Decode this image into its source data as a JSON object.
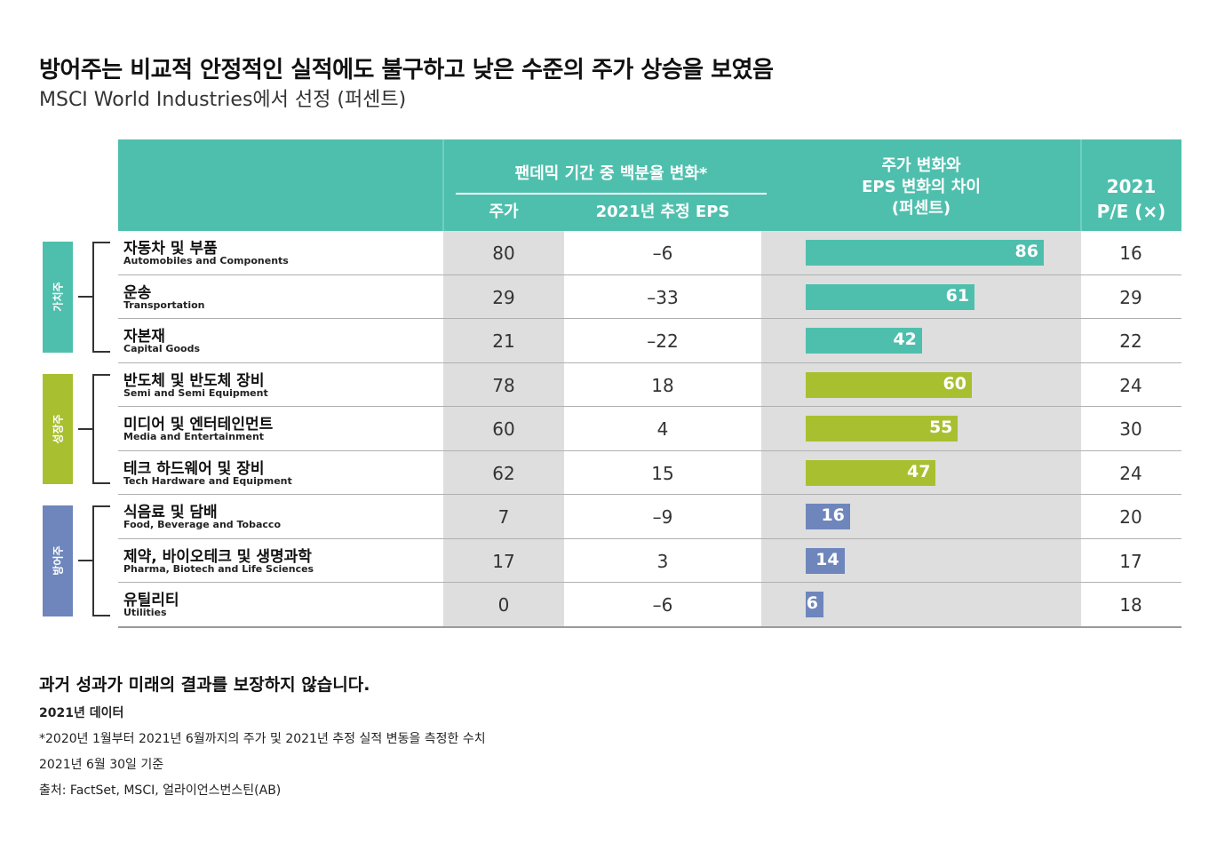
{
  "title": "방어주는 비교적 안정적인 실적에도 불구하고 낮은 수준의 주가 상승을 보였음",
  "subtitle": "MSCI World Industries에서 선정 (퍼센트)",
  "headers": {
    "pandemic": "팬데믹 기간 중 백분율 변화*",
    "price": "주가",
    "eps": "2021년 추정 EPS",
    "diff_line1": "주가 변화와",
    "diff_line2": "EPS 변화의 차이",
    "diff_line3": "(퍼센트)",
    "pe_line1": "2021",
    "pe_line2": "P/E (×)"
  },
  "groups": [
    {
      "label": "가치주",
      "color": "#4fbfad"
    },
    {
      "label": "성장주",
      "color": "#a8c030"
    },
    {
      "label": "방어주",
      "color": "#6e86bc"
    }
  ],
  "colors": {
    "header": "#4fbfad",
    "value": "#4fbfad",
    "growth": "#a8c030",
    "defensive": "#6e86bc"
  },
  "chart_data": {
    "type": "table",
    "columns": [
      "주가",
      "2021년 추정 EPS",
      "주가 변화와 EPS 변화의 차이 (퍼센트)",
      "2021 P/E (×)"
    ],
    "rows": [
      {
        "name_ko": "자동차 및 부품",
        "name_en": "Automobiles and Components",
        "group": 0,
        "price": "80",
        "eps": "–6",
        "diff": 86,
        "pe": "16"
      },
      {
        "name_ko": "운송",
        "name_en": "Transportation",
        "group": 0,
        "price": "29",
        "eps": "–33",
        "diff": 61,
        "pe": "29"
      },
      {
        "name_ko": "자본재",
        "name_en": "Capital Goods",
        "group": 0,
        "price": "21",
        "eps": "–22",
        "diff": 42,
        "pe": "22"
      },
      {
        "name_ko": "반도체 및 반도체 장비",
        "name_en": "Semi and Semi Equipment",
        "group": 1,
        "price": "78",
        "eps": "18",
        "diff": 60,
        "pe": "24"
      },
      {
        "name_ko": "미디어 및 엔터테인먼트",
        "name_en": "Media and Entertainment",
        "group": 1,
        "price": "60",
        "eps": "4",
        "diff": 55,
        "pe": "30"
      },
      {
        "name_ko": "테크 하드웨어 및 장비",
        "name_en": "Tech Hardware and Equipment",
        "group": 1,
        "price": "62",
        "eps": "15",
        "diff": 47,
        "pe": "24"
      },
      {
        "name_ko": "식음료 및 담배",
        "name_en": "Food, Beverage and Tobacco",
        "group": 2,
        "price": "7",
        "eps": "–9",
        "diff": 16,
        "pe": "20"
      },
      {
        "name_ko": "제약, 바이오테크 및 생명과학",
        "name_en": "Pharma, Biotech and Life Sciences",
        "group": 2,
        "price": "17",
        "eps": "3",
        "diff": 14,
        "pe": "17"
      },
      {
        "name_ko": "유틸리티",
        "name_en": "Utilities",
        "group": 2,
        "price": "0",
        "eps": "–6",
        "diff": 6,
        "pe": "18"
      }
    ]
  },
  "footer": {
    "disclaimer": "과거 성과가 미래의 결과를 보장하지 않습니다.",
    "data_year": "2021년 데이터",
    "note": "*2020년 1월부터 2021년 6월까지의 주가 및 2021년 추정 실적 변동을 측정한 수치",
    "as_of": "2021년 6월 30일 기준",
    "source": "출처: FactSet, MSCI, 얼라이언스번스틴(AB)"
  }
}
